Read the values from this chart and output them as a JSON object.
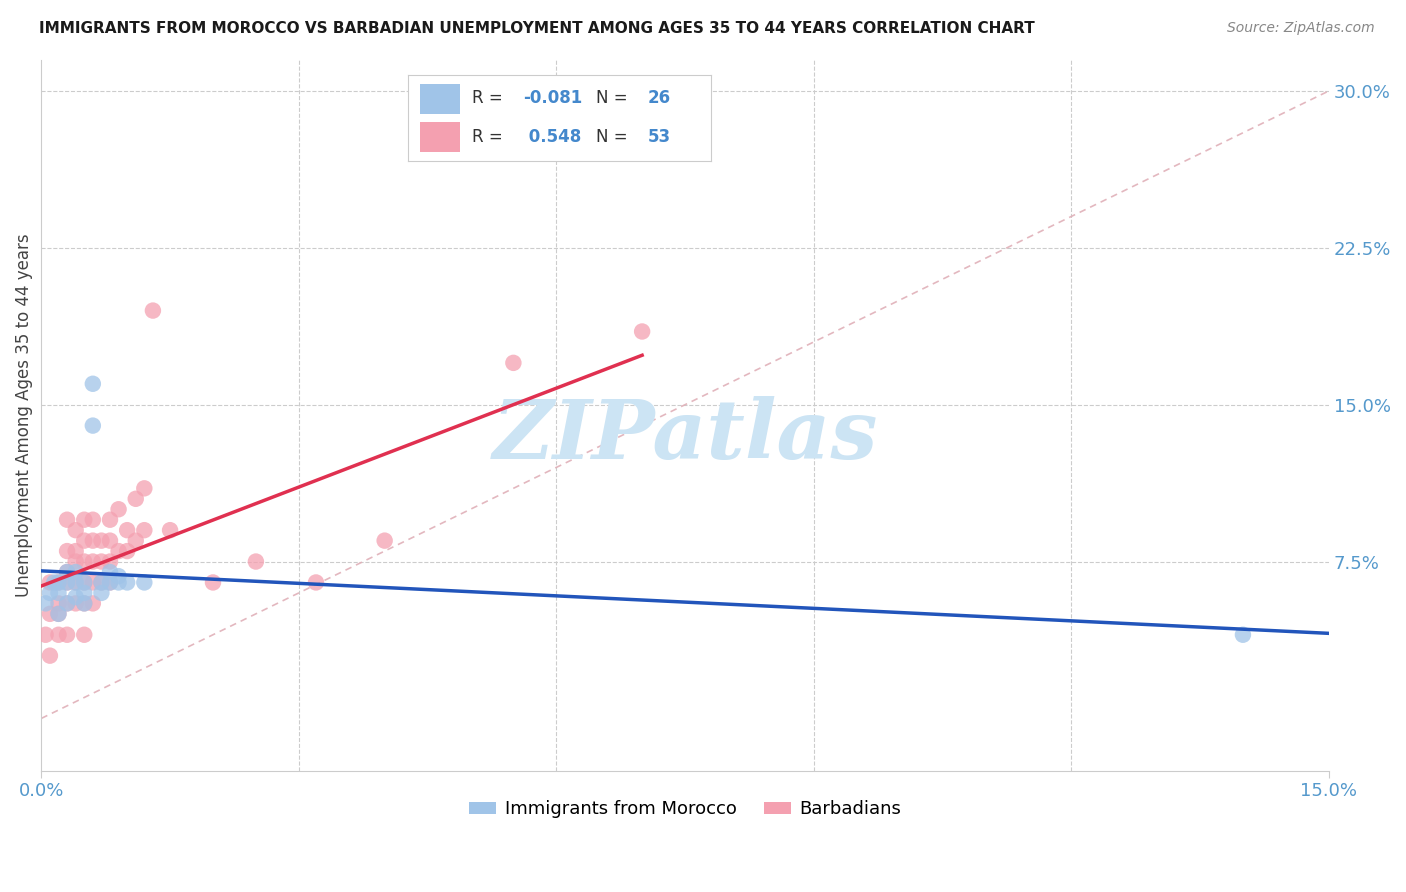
{
  "title": "IMMIGRANTS FROM MOROCCO VS BARBADIAN UNEMPLOYMENT AMONG AGES 35 TO 44 YEARS CORRELATION CHART",
  "source": "Source: ZipAtlas.com",
  "ylabel": "Unemployment Among Ages 35 to 44 years",
  "xlim": [
    0,
    0.15
  ],
  "ylim": [
    -0.025,
    0.315
  ],
  "ytick_vals": [
    0.0,
    0.075,
    0.15,
    0.225,
    0.3
  ],
  "ytick_labels": [
    "",
    "7.5%",
    "15.0%",
    "22.5%",
    "30.0%"
  ],
  "xtick_vals": [
    0.0,
    0.15
  ],
  "xtick_labels": [
    "0.0%",
    "15.0%"
  ],
  "xgrid_vals": [
    0.03,
    0.06,
    0.09,
    0.12
  ],
  "ygrid_vals": [
    0.075,
    0.15,
    0.225,
    0.3
  ],
  "morocco_color": "#a0c4e8",
  "barbadian_color": "#f4a0b0",
  "morocco_line_color": "#2255bb",
  "barbadian_line_color": "#e03050",
  "diagonal_color": "#e0b0b8",
  "background_color": "#ffffff",
  "watermark_text": "ZIPatlas",
  "watermark_color": "#cce4f4",
  "grid_color": "#cccccc",
  "axis_color": "#5599cc",
  "title_color": "#1a1a1a",
  "source_color": "#888888",
  "legend_r_color": "#4488cc",
  "legend_n_color": "#4488cc",
  "r_morocco": "-0.081",
  "n_morocco": "26",
  "r_barbadian": "0.548",
  "n_barbadian": "53",
  "morocco_x": [
    0.0005,
    0.001,
    0.0015,
    0.002,
    0.002,
    0.002,
    0.003,
    0.003,
    0.003,
    0.004,
    0.004,
    0.004,
    0.005,
    0.005,
    0.005,
    0.006,
    0.006,
    0.007,
    0.007,
    0.008,
    0.008,
    0.009,
    0.009,
    0.01,
    0.012,
    0.14
  ],
  "morocco_y": [
    0.055,
    0.06,
    0.065,
    0.05,
    0.06,
    0.065,
    0.055,
    0.065,
    0.07,
    0.058,
    0.065,
    0.07,
    0.055,
    0.06,
    0.065,
    0.16,
    0.14,
    0.06,
    0.065,
    0.065,
    0.07,
    0.065,
    0.068,
    0.065,
    0.065,
    0.04
  ],
  "barbadian_x": [
    0.0005,
    0.001,
    0.001,
    0.001,
    0.002,
    0.002,
    0.002,
    0.002,
    0.003,
    0.003,
    0.003,
    0.003,
    0.003,
    0.003,
    0.004,
    0.004,
    0.004,
    0.004,
    0.004,
    0.005,
    0.005,
    0.005,
    0.005,
    0.005,
    0.005,
    0.006,
    0.006,
    0.006,
    0.006,
    0.006,
    0.007,
    0.007,
    0.007,
    0.008,
    0.008,
    0.008,
    0.008,
    0.009,
    0.009,
    0.01,
    0.01,
    0.011,
    0.011,
    0.012,
    0.012,
    0.013,
    0.015,
    0.02,
    0.025,
    0.032,
    0.04,
    0.055,
    0.07
  ],
  "barbadian_y": [
    0.04,
    0.03,
    0.05,
    0.065,
    0.04,
    0.05,
    0.055,
    0.065,
    0.04,
    0.055,
    0.065,
    0.07,
    0.08,
    0.095,
    0.055,
    0.065,
    0.075,
    0.08,
    0.09,
    0.04,
    0.055,
    0.065,
    0.075,
    0.085,
    0.095,
    0.055,
    0.065,
    0.075,
    0.085,
    0.095,
    0.065,
    0.075,
    0.085,
    0.065,
    0.075,
    0.085,
    0.095,
    0.08,
    0.1,
    0.08,
    0.09,
    0.085,
    0.105,
    0.09,
    0.11,
    0.195,
    0.09,
    0.065,
    0.075,
    0.065,
    0.085,
    0.17,
    0.185
  ]
}
